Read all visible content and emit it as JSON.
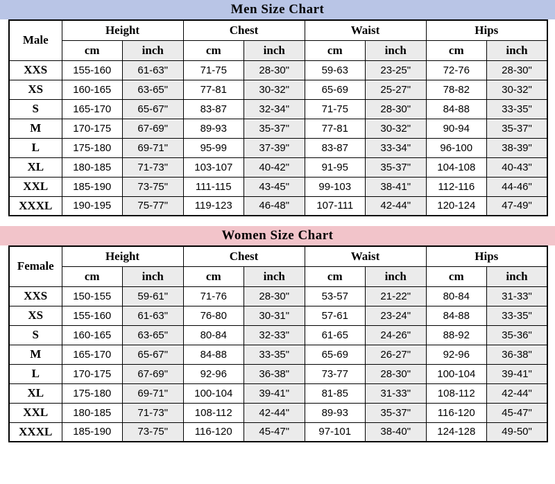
{
  "colors": {
    "men-title-bg": "#b9c5e6",
    "women-title-bg": "#f2c4ca",
    "inch-bg": "#ebebeb",
    "border": "#000000"
  },
  "units": {
    "cm": "cm",
    "inch": "inch"
  },
  "men": {
    "title": "Men Size Chart",
    "gender_label": "Male",
    "columns": [
      "Height",
      "Chest",
      "Waist",
      "Hips"
    ],
    "rows": [
      {
        "size": "XXS",
        "values": [
          "155-160",
          "61-63\"",
          "71-75",
          "28-30\"",
          "59-63",
          "23-25\"",
          "72-76",
          "28-30\""
        ]
      },
      {
        "size": "XS",
        "values": [
          "160-165",
          "63-65\"",
          "77-81",
          "30-32\"",
          "65-69",
          "25-27\"",
          "78-82",
          "30-32\""
        ]
      },
      {
        "size": "S",
        "values": [
          "165-170",
          "65-67\"",
          "83-87",
          "32-34\"",
          "71-75",
          "28-30\"",
          "84-88",
          "33-35\""
        ]
      },
      {
        "size": "M",
        "values": [
          "170-175",
          "67-69\"",
          "89-93",
          "35-37\"",
          "77-81",
          "30-32\"",
          "90-94",
          "35-37\""
        ]
      },
      {
        "size": "L",
        "values": [
          "175-180",
          "69-71\"",
          "95-99",
          "37-39\"",
          "83-87",
          "33-34\"",
          "96-100",
          "38-39\""
        ]
      },
      {
        "size": "XL",
        "values": [
          "180-185",
          "71-73\"",
          "103-107",
          "40-42\"",
          "91-95",
          "35-37\"",
          "104-108",
          "40-43\""
        ]
      },
      {
        "size": "XXL",
        "values": [
          "185-190",
          "73-75\"",
          "111-115",
          "43-45\"",
          "99-103",
          "38-41\"",
          "112-116",
          "44-46\""
        ]
      },
      {
        "size": "XXXL",
        "values": [
          "190-195",
          "75-77\"",
          "119-123",
          "46-48\"",
          "107-111",
          "42-44\"",
          "120-124",
          "47-49\""
        ]
      }
    ]
  },
  "women": {
    "title": "Women Size Chart",
    "gender_label": "Female",
    "columns": [
      "Height",
      "Chest",
      "Waist",
      "Hips"
    ],
    "rows": [
      {
        "size": "XXS",
        "values": [
          "150-155",
          "59-61\"",
          "71-76",
          "28-30\"",
          "53-57",
          "21-22\"",
          "80-84",
          "31-33\""
        ]
      },
      {
        "size": "XS",
        "values": [
          "155-160",
          "61-63\"",
          "76-80",
          "30-31\"",
          "57-61",
          "23-24\"",
          "84-88",
          "33-35\""
        ]
      },
      {
        "size": "S",
        "values": [
          "160-165",
          "63-65\"",
          "80-84",
          "32-33\"",
          "61-65",
          "24-26\"",
          "88-92",
          "35-36\""
        ]
      },
      {
        "size": "M",
        "values": [
          "165-170",
          "65-67\"",
          "84-88",
          "33-35\"",
          "65-69",
          "26-27\"",
          "92-96",
          "36-38\""
        ]
      },
      {
        "size": "L",
        "values": [
          "170-175",
          "67-69\"",
          "92-96",
          "36-38\"",
          "73-77",
          "28-30\"",
          "100-104",
          "39-41\""
        ]
      },
      {
        "size": "XL",
        "values": [
          "175-180",
          "69-71\"",
          "100-104",
          "39-41\"",
          "81-85",
          "31-33\"",
          "108-112",
          "42-44\""
        ]
      },
      {
        "size": "XXL",
        "values": [
          "180-185",
          "71-73\"",
          "108-112",
          "42-44\"",
          "89-93",
          "35-37\"",
          "116-120",
          "45-47\""
        ]
      },
      {
        "size": "XXXL",
        "values": [
          "185-190",
          "73-75\"",
          "116-120",
          "45-47\"",
          "97-101",
          "38-40\"",
          "124-128",
          "49-50\""
        ]
      }
    ]
  }
}
